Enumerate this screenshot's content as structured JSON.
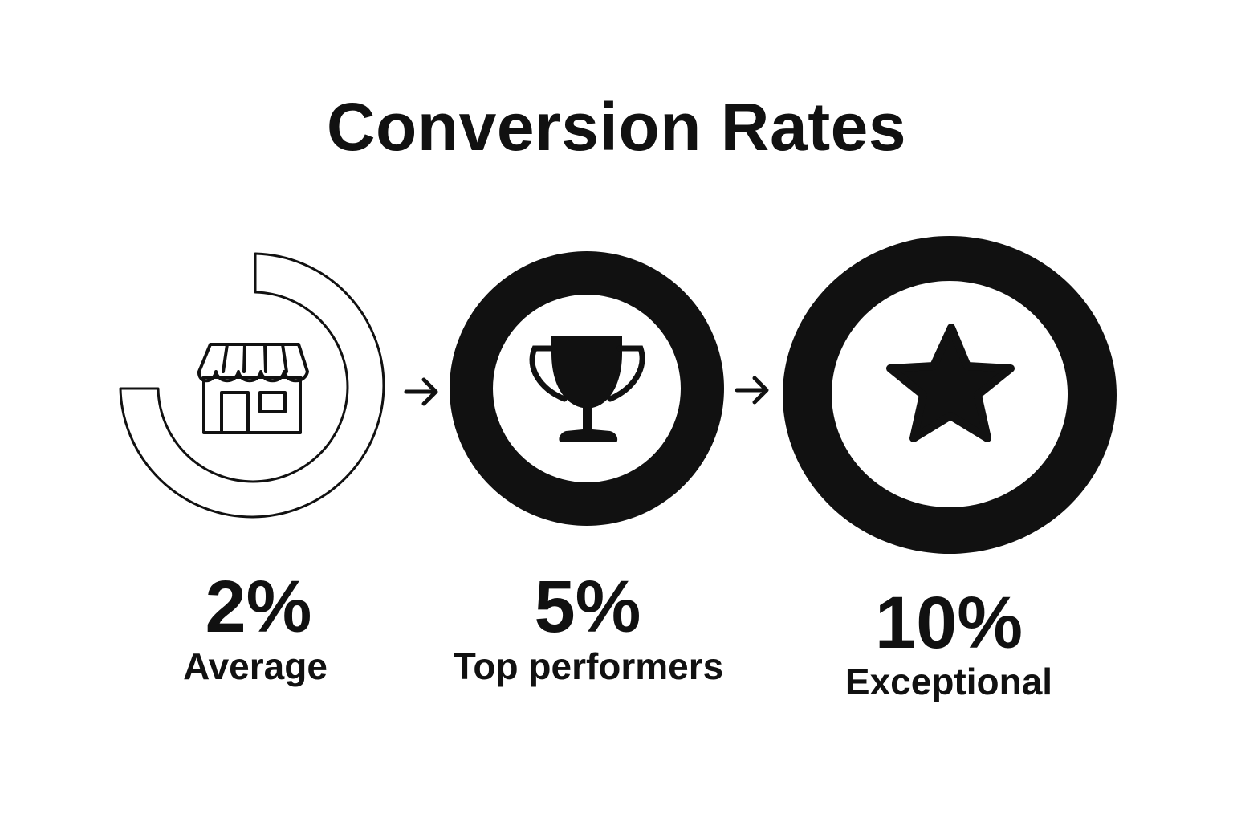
{
  "title": "Conversion Rates",
  "stages": [
    {
      "value": "2%",
      "label": "Average",
      "icon": "storefront-icon"
    },
    {
      "value": "5%",
      "label": "Top performers",
      "icon": "trophy-icon"
    },
    {
      "value": "10%",
      "label": "Exceptional",
      "icon": "star-icon"
    }
  ],
  "connectors": [
    "arrow-right-icon",
    "arrow-right-icon"
  ],
  "colors": {
    "ink": "#111111",
    "background": "#ffffff"
  }
}
